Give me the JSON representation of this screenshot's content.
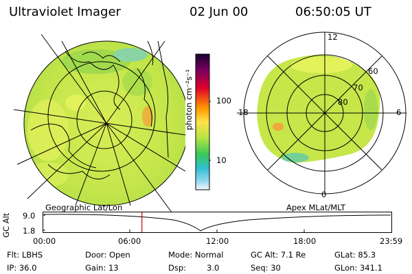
{
  "header": {
    "title": "Ultraviolet Imager",
    "date": "02 Jun 00",
    "time": "06:50:05 UT"
  },
  "colorbar": {
    "unit_label": "photon cm⁻²s⁻¹",
    "ticks": [
      "100",
      "10"
    ]
  },
  "polar_plot": {
    "mlt_labels": {
      "top": "12",
      "left": "18",
      "right": "6",
      "bottom": "0"
    },
    "mlat_labels": [
      "60",
      "70",
      "80"
    ]
  },
  "timeline": {
    "left_label": "Geographic Lat/Lon",
    "right_label": "Apex MLat/MLT",
    "y_axis_title": "GC Alt",
    "y_ticks": [
      "9.0",
      "1.8"
    ],
    "x_ticks": [
      "00:00",
      "06:00",
      "12:00",
      "18:00",
      "23:59"
    ],
    "marker_time_hours": 6.835
  },
  "info": {
    "flt": "Flt: LBHS",
    "ip": "IP: 36.0",
    "door": "Door: Open",
    "gain": "Gain: 13",
    "mode": "Mode: Normal",
    "dsp_label": "Dsp:",
    "dsp_value": "3.0",
    "gc_alt": "GC Alt: 7.1 Re",
    "seq": "Seq: 30",
    "glat": "GLat: 85.3",
    "glon": "GLon: 341.1"
  },
  "colors": {
    "aurora_base": "#c8e84a",
    "marker": "#cc0000"
  }
}
